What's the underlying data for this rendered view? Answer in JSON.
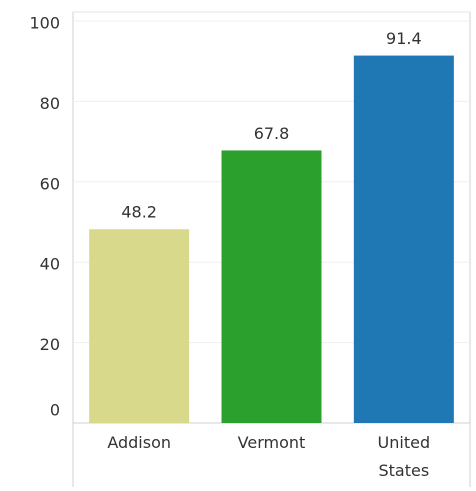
{
  "chart_data": {
    "type": "bar",
    "categories": [
      "Addison",
      "Vermont",
      "United States"
    ],
    "values": [
      48.2,
      67.8,
      91.4
    ],
    "colors": [
      "#d9d98b",
      "#2ca02c",
      "#1f77b4"
    ],
    "ylim": [
      0,
      100
    ],
    "yticks": [
      0,
      20,
      40,
      60,
      80,
      100
    ],
    "grid": true
  }
}
